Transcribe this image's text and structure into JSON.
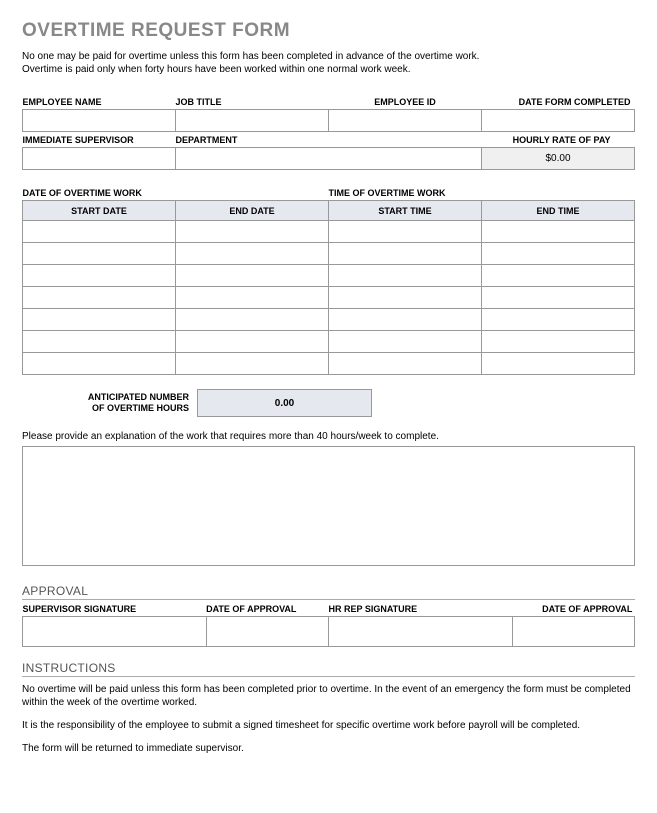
{
  "title": "OVERTIME REQUEST FORM",
  "intro_line1": "No one may be paid for overtime unless this form has been completed in advance of the overtime work.",
  "intro_line2": "Overtime is paid only when forty hours have been worked within one normal work week.",
  "labels": {
    "employee_name": "EMPLOYEE NAME",
    "job_title": "JOB TITLE",
    "employee_id": "EMPLOYEE ID",
    "date_form_completed": "DATE FORM COMPLETED",
    "immediate_supervisor": "IMMEDIATE SUPERVISOR",
    "department": "DEPARTMENT",
    "hourly_rate": "HOURLY RATE OF PAY",
    "date_of_overtime_work": "DATE OF OVERTIME WORK",
    "time_of_overtime_work": "TIME OF OVERTIME WORK",
    "start_date": "START DATE",
    "end_date": "END DATE",
    "start_time": "START TIME",
    "end_time": "END TIME",
    "anticipated_number": "ANTICIPATED NUMBER",
    "of_overtime_hours": "OF OVERTIME HOURS",
    "supervisor_signature": "SUPERVISOR SIGNATURE",
    "date_of_approval": "DATE OF APPROVAL",
    "hr_rep_signature": "HR REP SIGNATURE"
  },
  "values": {
    "hourly_rate": "$0.00",
    "anticipated_hours": "0.00"
  },
  "explain_prompt": "Please provide an explanation of the work that requires more than 40 hours/week to complete.",
  "approval_title": "APPROVAL",
  "instructions_title": "INSTRUCTIONS",
  "instructions": {
    "p1": "No overtime will be paid unless this form has been completed prior to overtime.  In the event of an emergency the form must be completed within the week of the overtime worked.",
    "p2": "It is the responsibility of the employee to submit a signed timesheet for specific overtime work before payroll will be completed.",
    "p3": "The form will be returned to immediate supervisor."
  },
  "overtime_row_count": 7
}
